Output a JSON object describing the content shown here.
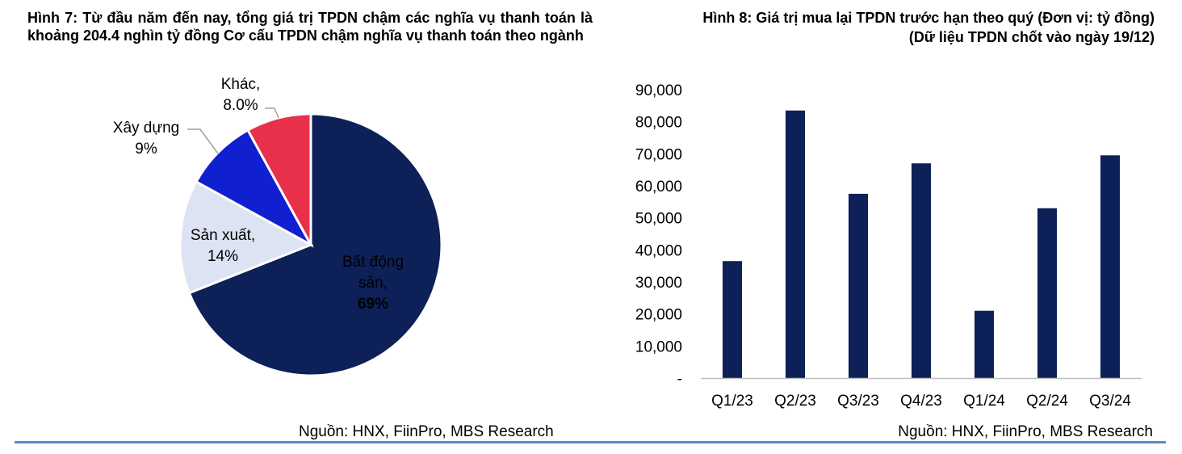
{
  "figure7": {
    "title": "Hình 7: Từ đầu năm đến nay, tổng giá trị TPDN chậm các nghĩa vụ thanh toán là khoảng 204.4 nghìn tỷ đồng Cơ cấu TPDN chậm nghĩa vụ thanh toán theo ngành",
    "source": "Nguồn: HNX, FiinPro, MBS Research"
  },
  "figure8": {
    "title_line1": "Hình 8: Giá trị mua lại TPDN trước hạn theo quý (Đơn vị: tỷ đồng)",
    "title_line2": "(Dữ liệu TPDN chốt vào ngày 19/12)",
    "source": "Nguồn: HNX, FiinPro, MBS Research"
  },
  "chart_data": [
    {
      "type": "pie",
      "title": "",
      "slices": [
        {
          "label_line1": "Bất động",
          "label_line2": "sản,",
          "value_label": "69%",
          "value": 69,
          "color": "#0d2057"
        },
        {
          "label_line1": "Sản xuất,",
          "label_line2": "",
          "value_label": "14%",
          "value": 14,
          "color": "#dde3f3"
        },
        {
          "label_line1": "Xây dựng",
          "label_line2": "",
          "value_label": "9%",
          "value": 9,
          "color": "#1020d0"
        },
        {
          "label_line1": "Khác,",
          "label_line2": "",
          "value_label": "8.0%",
          "value": 8,
          "color": "#e8304a"
        }
      ]
    },
    {
      "type": "bar",
      "title": "",
      "categories": [
        "Q1/23",
        "Q2/23",
        "Q3/23",
        "Q4/23",
        "Q1/24",
        "Q2/24",
        "Q3/24"
      ],
      "values": [
        36500,
        83500,
        57500,
        67000,
        21000,
        53000,
        69500
      ],
      "ylim": [
        0,
        90000
      ],
      "yticks": [
        0,
        10000,
        20000,
        30000,
        40000,
        50000,
        60000,
        70000,
        80000,
        90000
      ],
      "ytick_labels": [
        "-",
        "10,000",
        "20,000",
        "30,000",
        "40,000",
        "50,000",
        "60,000",
        "70,000",
        "80,000",
        "90,000"
      ],
      "bar_color": "#0d2057",
      "grid": false
    }
  ]
}
